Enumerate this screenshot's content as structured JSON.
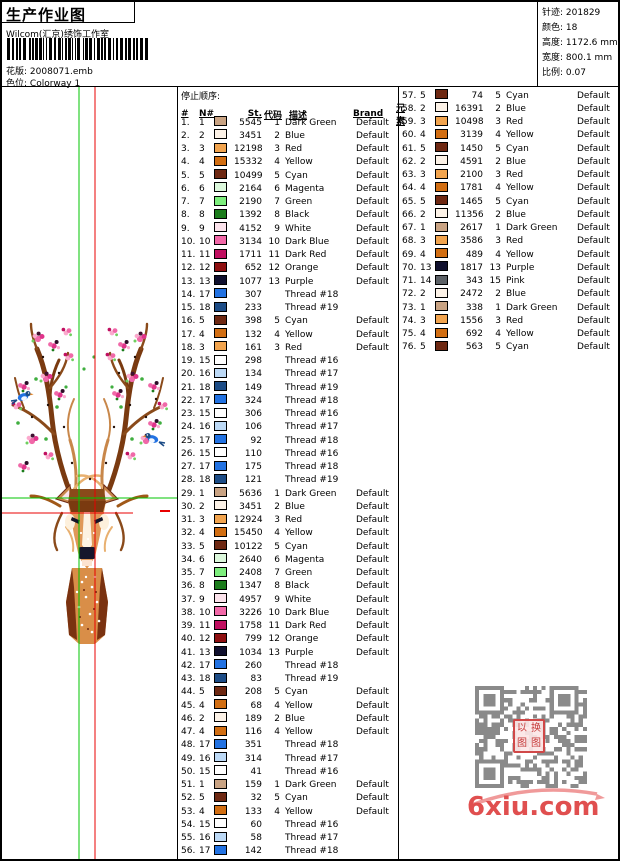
{
  "header": {
    "title": "生产作业图",
    "studio": "Wilcom(汇京)绣饰工作室",
    "pattern_label": "花版:",
    "pattern_value": "2008071.emb",
    "colorway_label": "色位:",
    "colorway_value": "Colorway 1",
    "info": [
      {
        "label": "针迹:",
        "value": "201829"
      },
      {
        "label": "颜色:",
        "value": "18"
      },
      {
        "label": "高度:",
        "value": "1172.6 mm"
      },
      {
        "label": "宽度:",
        "value": "800.1 mm"
      },
      {
        "label": "比例:",
        "value": "0.07"
      }
    ]
  },
  "table": {
    "section_title": "停止顺序:",
    "columns": [
      "#",
      "N#",
      "St.",
      "代码",
      "描述",
      "Brand",
      "元素"
    ],
    "thread_colors": {
      "1": "#c9a383",
      "2": "#fcf2e7",
      "3": "#f2a44e",
      "4": "#d26e12",
      "5": "#6e2812",
      "6": "#dcf8dc",
      "7": "#7dee7d",
      "8": "#1b7c1b",
      "9": "#fce3ec",
      "10": "#f268a8",
      "11": "#c00f60",
      "12": "#8e0f10",
      "13": "#10102e",
      "14": "#5c6166",
      "15": "#ffffff",
      "16": "#bcd9f6",
      "17": "#2272e2",
      "18": "#1c4c86"
    },
    "rows": [
      [
        "1.",
        1,
        5545,
        "1",
        "Dark Green",
        "Default"
      ],
      [
        "2.",
        2,
        3451,
        "2",
        "Blue",
        "Default"
      ],
      [
        "3.",
        3,
        12198,
        "3",
        "Red",
        "Default"
      ],
      [
        "4.",
        4,
        15332,
        "4",
        "Yellow",
        "Default"
      ],
      [
        "5.",
        5,
        10499,
        "5",
        "Cyan",
        "Default"
      ],
      [
        "6.",
        6,
        2164,
        "6",
        "Magenta",
        "Default"
      ],
      [
        "7.",
        7,
        2190,
        "7",
        "Green",
        "Default"
      ],
      [
        "8.",
        8,
        1392,
        "8",
        "Black",
        "Default"
      ],
      [
        "9.",
        9,
        4152,
        "9",
        "White",
        "Default"
      ],
      [
        "10.",
        10,
        3134,
        "10",
        "Dark Blue",
        "Default"
      ],
      [
        "11.",
        11,
        1711,
        "11",
        "Dark Red",
        "Default"
      ],
      [
        "12.",
        12,
        652,
        "12",
        "Orange",
        "Default"
      ],
      [
        "13.",
        13,
        1077,
        "13",
        "Purple",
        "Default"
      ],
      [
        "14.",
        17,
        307,
        "",
        "Thread #18",
        ""
      ],
      [
        "15.",
        18,
        233,
        "",
        "Thread #19",
        ""
      ],
      [
        "16.",
        5,
        398,
        "5",
        "Cyan",
        "Default"
      ],
      [
        "17.",
        4,
        132,
        "4",
        "Yellow",
        "Default"
      ],
      [
        "18.",
        3,
        161,
        "3",
        "Red",
        "Default"
      ],
      [
        "19.",
        15,
        298,
        "",
        "Thread #16",
        ""
      ],
      [
        "20.",
        16,
        134,
        "",
        "Thread #17",
        ""
      ],
      [
        "21.",
        18,
        149,
        "",
        "Thread #19",
        ""
      ],
      [
        "22.",
        17,
        324,
        "",
        "Thread #18",
        ""
      ],
      [
        "23.",
        15,
        306,
        "",
        "Thread #16",
        ""
      ],
      [
        "24.",
        16,
        106,
        "",
        "Thread #17",
        ""
      ],
      [
        "25.",
        17,
        92,
        "",
        "Thread #18",
        ""
      ],
      [
        "26.",
        15,
        110,
        "",
        "Thread #16",
        ""
      ],
      [
        "27.",
        17,
        175,
        "",
        "Thread #18",
        ""
      ],
      [
        "28.",
        18,
        121,
        "",
        "Thread #19",
        ""
      ],
      [
        "29.",
        1,
        5636,
        "1",
        "Dark Green",
        "Default"
      ],
      [
        "30.",
        2,
        3451,
        "2",
        "Blue",
        "Default"
      ],
      [
        "31.",
        3,
        12924,
        "3",
        "Red",
        "Default"
      ],
      [
        "32.",
        4,
        15450,
        "4",
        "Yellow",
        "Default"
      ],
      [
        "33.",
        5,
        10122,
        "5",
        "Cyan",
        "Default"
      ],
      [
        "34.",
        6,
        2640,
        "6",
        "Magenta",
        "Default"
      ],
      [
        "35.",
        7,
        2408,
        "7",
        "Green",
        "Default"
      ],
      [
        "36.",
        8,
        1347,
        "8",
        "Black",
        "Default"
      ],
      [
        "37.",
        9,
        4957,
        "9",
        "White",
        "Default"
      ],
      [
        "38.",
        10,
        3226,
        "10",
        "Dark Blue",
        "Default"
      ],
      [
        "39.",
        11,
        1758,
        "11",
        "Dark Red",
        "Default"
      ],
      [
        "40.",
        12,
        799,
        "12",
        "Orange",
        "Default"
      ],
      [
        "41.",
        13,
        1034,
        "13",
        "Purple",
        "Default"
      ],
      [
        "42.",
        17,
        260,
        "",
        "Thread #18",
        ""
      ],
      [
        "43.",
        18,
        83,
        "",
        "Thread #19",
        ""
      ],
      [
        "44.",
        5,
        208,
        "5",
        "Cyan",
        "Default"
      ],
      [
        "45.",
        4,
        68,
        "4",
        "Yellow",
        "Default"
      ],
      [
        "46.",
        2,
        189,
        "2",
        "Blue",
        "Default"
      ],
      [
        "47.",
        4,
        116,
        "4",
        "Yellow",
        "Default"
      ],
      [
        "48.",
        17,
        351,
        "",
        "Thread #18",
        ""
      ],
      [
        "49.",
        16,
        314,
        "",
        "Thread #17",
        ""
      ],
      [
        "50.",
        15,
        41,
        "",
        "Thread #16",
        ""
      ],
      [
        "51.",
        1,
        159,
        "1",
        "Dark Green",
        "Default"
      ],
      [
        "52.",
        5,
        32,
        "5",
        "Cyan",
        "Default"
      ],
      [
        "53.",
        4,
        133,
        "4",
        "Yellow",
        "Default"
      ],
      [
        "54.",
        15,
        60,
        "",
        "Thread #16",
        ""
      ],
      [
        "55.",
        16,
        58,
        "",
        "Thread #17",
        ""
      ],
      [
        "56.",
        17,
        142,
        "",
        "Thread #18",
        ""
      ],
      [
        "57.",
        5,
        74,
        "5",
        "Cyan",
        "Default"
      ],
      [
        "58.",
        2,
        16391,
        "2",
        "Blue",
        "Default"
      ],
      [
        "59.",
        3,
        10498,
        "3",
        "Red",
        "Default"
      ],
      [
        "60.",
        4,
        3139,
        "4",
        "Yellow",
        "Default"
      ],
      [
        "61.",
        5,
        1450,
        "5",
        "Cyan",
        "Default"
      ],
      [
        "62.",
        2,
        4591,
        "2",
        "Blue",
        "Default"
      ],
      [
        "63.",
        3,
        2100,
        "3",
        "Red",
        "Default"
      ],
      [
        "64.",
        4,
        1781,
        "4",
        "Yellow",
        "Default"
      ],
      [
        "65.",
        5,
        1465,
        "5",
        "Cyan",
        "Default"
      ],
      [
        "66.",
        2,
        11356,
        "2",
        "Blue",
        "Default"
      ],
      [
        "67.",
        1,
        2617,
        "1",
        "Dark Green",
        "Default"
      ],
      [
        "68.",
        3,
        3586,
        "3",
        "Red",
        "Default"
      ],
      [
        "69.",
        4,
        489,
        "4",
        "Yellow",
        "Default"
      ],
      [
        "70.",
        13,
        1817,
        "13",
        "Purple",
        "Default"
      ],
      [
        "71.",
        14,
        343,
        "15",
        "Pink",
        "Default"
      ],
      [
        "72.",
        2,
        2472,
        "2",
        "Blue",
        "Default"
      ],
      [
        "73.",
        1,
        338,
        "1",
        "Dark Green",
        "Default"
      ],
      [
        "74.",
        3,
        1556,
        "3",
        "Red",
        "Default"
      ],
      [
        "75.",
        4,
        692,
        "4",
        "Yellow",
        "Default"
      ],
      [
        "76.",
        5,
        563,
        "5",
        "Cyan",
        "Default"
      ]
    ],
    "left_rows_count": 56
  },
  "design": {
    "alt": "deer-with-blossom-antlers-preview",
    "crosshair_green": "#00c400",
    "crosshair_red": "#e80000"
  },
  "watermark": {
    "seal_chars": [
      "以",
      "换",
      "图",
      "图"
    ],
    "site": "6xiu.com",
    "site_color": "#e04f4f"
  }
}
